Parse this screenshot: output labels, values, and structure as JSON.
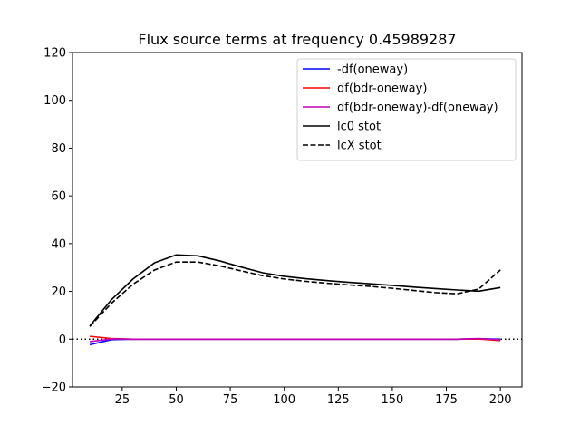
{
  "chart_data": {
    "type": "line",
    "title": "Flux source terms at frequency 0.45989287",
    "xlabel": "",
    "ylabel": "",
    "xlim": [
      2,
      210
    ],
    "ylim": [
      -20,
      120
    ],
    "xticks": [
      25,
      50,
      75,
      100,
      125,
      150,
      175,
      200
    ],
    "yticks": [
      -20,
      0,
      20,
      40,
      60,
      80,
      100,
      120
    ],
    "grid": false,
    "legend_position": "upper-right",
    "reference_line": {
      "y": 0,
      "style": "dotted",
      "color": "#000000"
    },
    "series": [
      {
        "name": "-df(oneway)",
        "color": "#0000ff",
        "dash": "solid",
        "x": [
          10,
          20,
          30,
          40,
          50,
          60,
          70,
          80,
          90,
          100,
          110,
          120,
          130,
          140,
          150,
          160,
          170,
          180,
          190,
          200
        ],
        "y": [
          -2.3,
          -0.2,
          0,
          0,
          0,
          0,
          0,
          0,
          0,
          0,
          0,
          0,
          0,
          0,
          0,
          0,
          0,
          0,
          0.2,
          0
        ]
      },
      {
        "name": "df(bdr-oneway)",
        "color": "#ff0000",
        "dash": "solid",
        "x": [
          10,
          20,
          30,
          40,
          50,
          60,
          70,
          80,
          90,
          100,
          110,
          120,
          130,
          140,
          150,
          160,
          170,
          180,
          190,
          200
        ],
        "y": [
          1.2,
          0.3,
          0,
          0,
          0,
          0,
          0,
          0,
          0,
          0,
          0,
          0,
          0,
          0,
          0,
          0,
          0,
          0,
          0.1,
          -0.6
        ]
      },
      {
        "name": "df(bdr-oneway)-df(oneway)",
        "color": "#bf00bf",
        "dash": "solid",
        "x": [
          10,
          20,
          30,
          40,
          50,
          60,
          70,
          80,
          90,
          100,
          110,
          120,
          130,
          140,
          150,
          160,
          170,
          180,
          190,
          200
        ],
        "y": [
          -1.0,
          0.1,
          0,
          0,
          0,
          0,
          0,
          0,
          0,
          0,
          0,
          0,
          0,
          0,
          0,
          0,
          0,
          0,
          0.3,
          -0.3
        ]
      },
      {
        "name": "lc0 stot",
        "color": "#000000",
        "dash": "solid",
        "x": [
          10,
          20,
          30,
          40,
          50,
          60,
          70,
          80,
          90,
          100,
          110,
          120,
          130,
          140,
          150,
          160,
          170,
          180,
          190,
          200
        ],
        "y": [
          5.5,
          16.5,
          25.2,
          32.0,
          35.3,
          34.9,
          32.8,
          30.2,
          27.8,
          26.3,
          25.3,
          24.5,
          23.8,
          23.2,
          22.5,
          21.8,
          21.2,
          20.6,
          20.1,
          21.6
        ]
      },
      {
        "name": "lcX stot",
        "color": "#000000",
        "dash": "dashed",
        "x": [
          10,
          20,
          30,
          40,
          50,
          60,
          70,
          80,
          90,
          100,
          110,
          120,
          130,
          140,
          150,
          160,
          170,
          180,
          190,
          200
        ],
        "y": [
          5.3,
          15.0,
          23.0,
          29.0,
          32.3,
          32.3,
          30.7,
          28.6,
          26.6,
          25.2,
          24.2,
          23.4,
          22.7,
          22.1,
          21.3,
          20.4,
          19.5,
          19.0,
          21.0,
          29.0
        ]
      }
    ]
  }
}
